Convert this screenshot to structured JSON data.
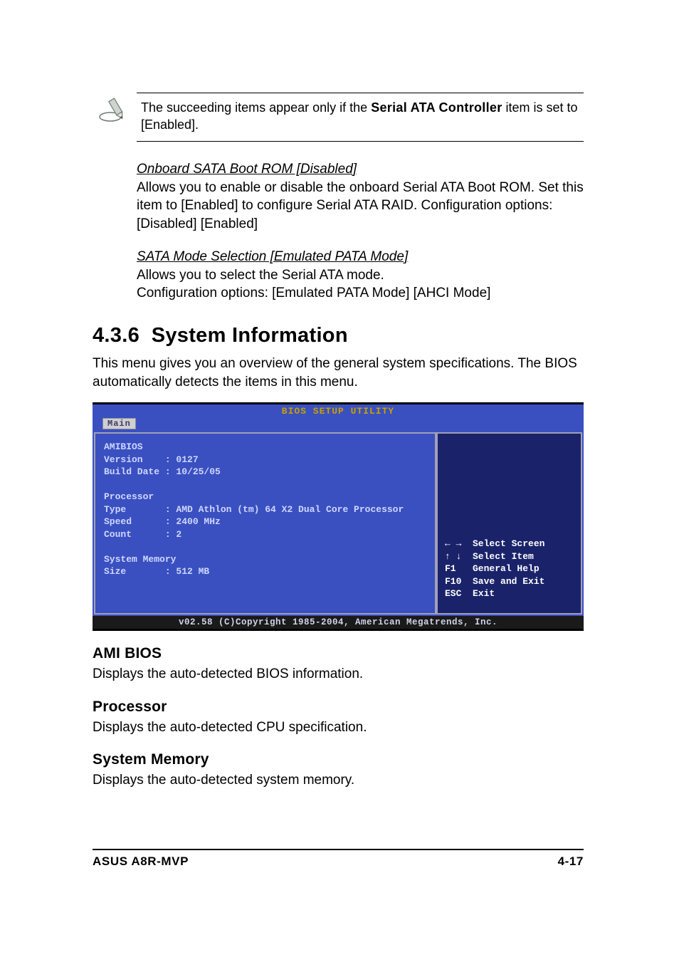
{
  "colors": {
    "bios_blue": "#3a50c0",
    "bios_dark": "#1a236a",
    "bios_text": "#ced7ff",
    "bios_gold": "#c9a000",
    "tab_bg": "#cfcfcf",
    "tab_fg": "#3a3a6a",
    "panel_border": "#a0a0b8",
    "footer_bg": "#1a1a1a",
    "page_bg": "#ffffff",
    "text": "#000000"
  },
  "note": {
    "pre": "The succeeding items appear only if the ",
    "bold": "Serial ATA Controller",
    "post": " item is set to [Enabled]."
  },
  "settings": [
    {
      "head": "Onboard SATA Boot ROM [Disabled]",
      "desc": "Allows you to enable or disable the onboard Serial ATA Boot ROM. Set this item to [Enabled] to configure Serial ATA RAID. Configuration options: [Disabled] [Enabled]"
    },
    {
      "head": "SATA Mode Selection [Emulated PATA Mode]",
      "desc": "Allows you to select the Serial ATA mode.\nConfiguration options: [Emulated PATA Mode] [AHCI Mode]"
    }
  ],
  "section": {
    "number": "4.3.6",
    "title": "System Information",
    "intro": "This menu gives you an overview of the general system specifications. The BIOS automatically detects the items in this menu."
  },
  "bios": {
    "title": "BIOS SETUP UTILITY",
    "tab": "Main",
    "lines": [
      "AMIBIOS",
      "Version    : 0127",
      "Build Date : 10/25/05",
      "",
      "Processor",
      "Type       : AMD Athlon (tm) 64 X2 Dual Core Processor",
      "Speed      : 2400 MHz",
      "Count      : 2",
      "",
      "System Memory",
      "Size       : 512 MB"
    ],
    "help": [
      {
        "key": "← →",
        "label": "Select Screen"
      },
      {
        "key": "↑ ↓",
        "label": "Select Item"
      },
      {
        "key": "F1",
        "label": "General Help"
      },
      {
        "key": "F10",
        "label": "Save and Exit"
      },
      {
        "key": "ESC",
        "label": "Exit"
      }
    ],
    "footer": "v02.58 (C)Copyright 1985-2004, American Megatrends, Inc."
  },
  "subsections": [
    {
      "title": "AMI BIOS",
      "body": "Displays the auto-detected BIOS information."
    },
    {
      "title": "Processor",
      "body": "Displays the auto-detected CPU specification."
    },
    {
      "title": "System Memory",
      "body": "Displays the auto-detected system memory."
    }
  ],
  "footer": {
    "left": "ASUS A8R-MVP",
    "right": "4-17"
  }
}
